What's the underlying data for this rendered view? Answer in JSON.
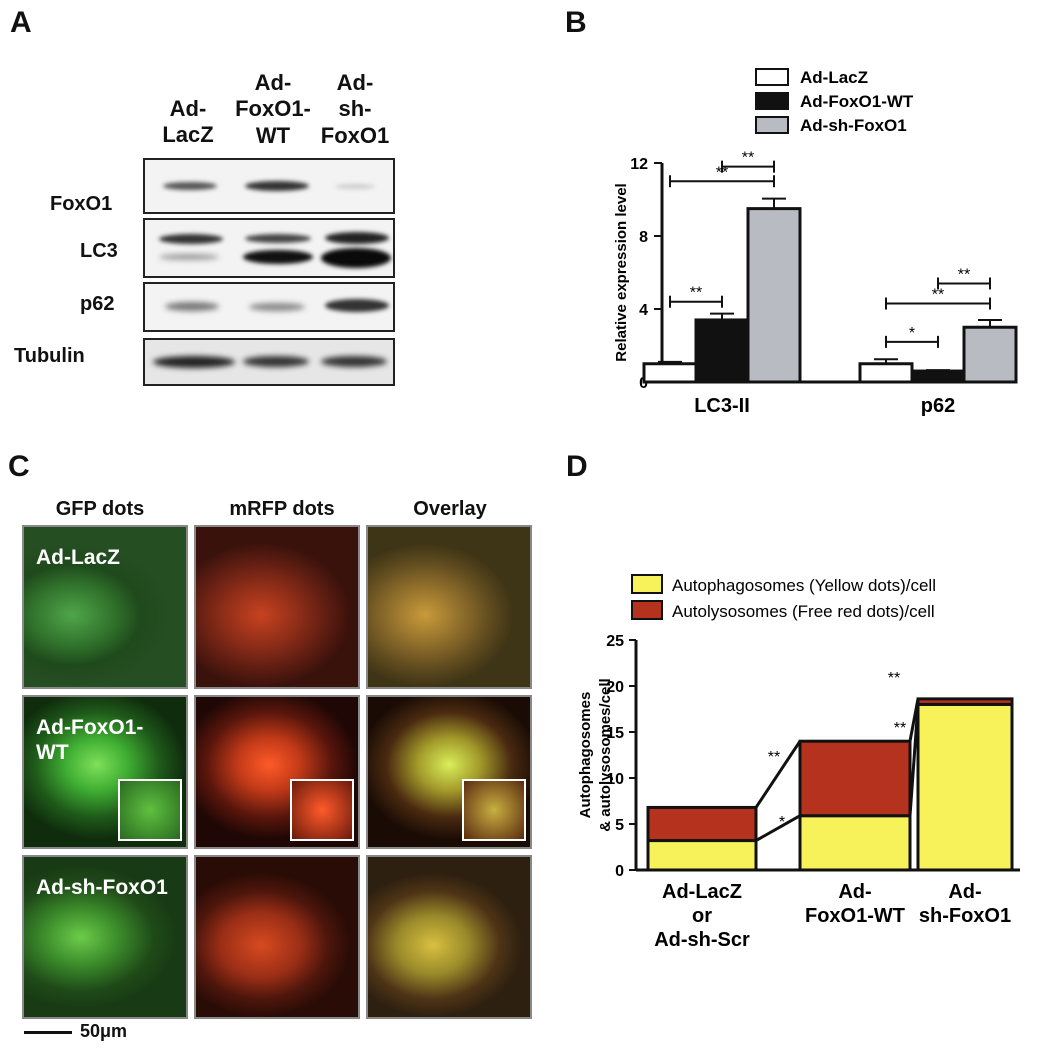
{
  "panels": {
    "a": "A",
    "b": "B",
    "c": "C",
    "d": "D"
  },
  "blot": {
    "columns": [
      [
        "Ad-",
        "LacZ"
      ],
      [
        "Ad-",
        "FoxO1-",
        "WT"
      ],
      [
        "Ad-",
        "sh-",
        "FoxO1"
      ]
    ],
    "rows": [
      "FoxO1",
      "LC3",
      "p62",
      "Tubulin"
    ]
  },
  "chart_b": {
    "type": "bar",
    "categories": [
      "LC3-II",
      "p62"
    ],
    "ylabel": "Relative expression level",
    "ylim": [
      0,
      12
    ],
    "yticks": [
      0,
      4,
      8,
      12
    ],
    "legend_position": "top",
    "series": [
      {
        "name": "Ad-LacZ",
        "color": "#ffffff",
        "values": [
          1.0,
          1.0
        ],
        "errors": [
          0.1,
          0.25
        ]
      },
      {
        "name": "Ad-FoxO1-WT",
        "color": "#111111",
        "values": [
          3.4,
          0.6
        ],
        "errors": [
          0.35,
          0.05
        ]
      },
      {
        "name": "Ad-sh-FoxO1",
        "color": "#b8bcc2",
        "values": [
          9.5,
          3.0
        ],
        "errors": [
          0.55,
          0.4
        ]
      }
    ],
    "significance": [
      {
        "label": "**",
        "category": 0,
        "from": 1,
        "to": 2,
        "y": 11.8
      },
      {
        "label": "**",
        "category": 0,
        "from": 0,
        "to": 2,
        "y": 11.0
      },
      {
        "label": "**",
        "category": 0,
        "from": 0,
        "to": 1,
        "y": 4.4
      },
      {
        "label": "**",
        "category": 1,
        "from": 1,
        "to": 2,
        "y": 5.4
      },
      {
        "label": "**",
        "category": 1,
        "from": 0,
        "to": 2,
        "y": 4.3
      },
      {
        "label": "*",
        "category": 1,
        "from": 0,
        "to": 1,
        "y": 2.2
      }
    ]
  },
  "micrographs": {
    "columns": [
      "GFP dots",
      "mRFP dots",
      "Overlay"
    ],
    "rows": [
      "Ad-LacZ",
      "Ad-FoxO1-\nWT",
      "Ad-sh-FoxO1"
    ],
    "scale_bar": "50μm"
  },
  "chart_d": {
    "type": "bar",
    "stacked": true,
    "categories": [
      "Ad-LacZ\nor\nAd-sh-Scr",
      "Ad-\nFoxO1-WT",
      "Ad-\nsh-FoxO1"
    ],
    "ylabel_lines": [
      "Autophagosomes",
      "& autolysosomes/cell"
    ],
    "ylim": [
      0,
      25
    ],
    "yticks": [
      0,
      5,
      10,
      15,
      20,
      25
    ],
    "legend_position": "top",
    "series": [
      {
        "name": "Autophagosomes (Yellow dots)/cell",
        "color": "#f7f25a",
        "values": [
          3.2,
          5.9,
          18.0
        ]
      },
      {
        "name": "Autolysosomes (Free red dots)/cell",
        "color": "#b5321e",
        "values": [
          3.6,
          8.1,
          0.6
        ]
      }
    ],
    "significance": [
      "**",
      "*",
      "**",
      "**"
    ]
  }
}
